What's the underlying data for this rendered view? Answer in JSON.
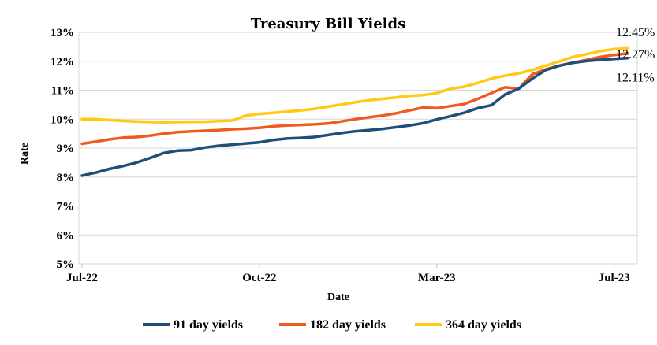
{
  "chart_data": {
    "type": "line",
    "title": "Treasury Bill Yields",
    "xlabel": "Date",
    "ylabel": "Rate",
    "ylim": [
      5,
      13
    ],
    "y_ticks": [
      "5%",
      "6%",
      "7%",
      "8%",
      "9%",
      "10%",
      "11%",
      "12%",
      "13%"
    ],
    "x_ticks": [
      {
        "label": "Jul-22",
        "t": 0
      },
      {
        "label": "Oct-22",
        "t": 13
      },
      {
        "label": "Mar-23",
        "t": 26
      },
      {
        "label": "Jul-23",
        "t": 39
      }
    ],
    "x": [
      0,
      1,
      2,
      3,
      4,
      5,
      6,
      7,
      8,
      9,
      10,
      11,
      12,
      13,
      14,
      15,
      16,
      17,
      18,
      19,
      20,
      21,
      22,
      23,
      24,
      25,
      26,
      27,
      28,
      29,
      30,
      31,
      32,
      33,
      34,
      35,
      36,
      37,
      38,
      39,
      40
    ],
    "series": [
      {
        "name": "91 day yields",
        "color": "#1f4e79",
        "values": [
          8.05,
          8.15,
          8.28,
          8.38,
          8.5,
          8.66,
          8.83,
          8.91,
          8.93,
          9.02,
          9.08,
          9.12,
          9.16,
          9.2,
          9.28,
          9.33,
          9.35,
          9.38,
          9.45,
          9.52,
          9.58,
          9.62,
          9.66,
          9.72,
          9.78,
          9.86,
          9.99,
          10.1,
          10.22,
          10.38,
          10.48,
          10.85,
          11.05,
          11.4,
          11.7,
          11.85,
          11.95,
          12.01,
          12.05,
          12.08,
          12.11
        ]
      },
      {
        "name": "182 day yields",
        "color": "#f05a1e",
        "values": [
          9.15,
          9.22,
          9.3,
          9.36,
          9.38,
          9.43,
          9.5,
          9.55,
          9.58,
          9.6,
          9.62,
          9.65,
          9.67,
          9.7,
          9.75,
          9.78,
          9.8,
          9.82,
          9.85,
          9.92,
          10.0,
          10.06,
          10.12,
          10.2,
          10.3,
          10.4,
          10.38,
          10.45,
          10.52,
          10.7,
          10.9,
          11.1,
          11.05,
          11.55,
          11.72,
          11.85,
          11.95,
          12.05,
          12.15,
          12.22,
          12.27
        ]
      },
      {
        "name": "364 day yields",
        "color": "#ffc914",
        "values": [
          10.0,
          10.0,
          9.97,
          9.94,
          9.92,
          9.9,
          9.89,
          9.9,
          9.91,
          9.91,
          9.93,
          9.95,
          10.12,
          10.18,
          10.22,
          10.26,
          10.3,
          10.35,
          10.43,
          10.5,
          10.58,
          10.65,
          10.7,
          10.75,
          10.8,
          10.83,
          10.9,
          11.05,
          11.12,
          11.25,
          11.4,
          11.5,
          11.58,
          11.7,
          11.85,
          12.0,
          12.15,
          12.25,
          12.35,
          12.42,
          12.45
        ]
      }
    ],
    "data_labels": [
      "12.45%",
      "12.27%",
      "12.11%"
    ],
    "legend": {
      "position": "bottom"
    }
  }
}
